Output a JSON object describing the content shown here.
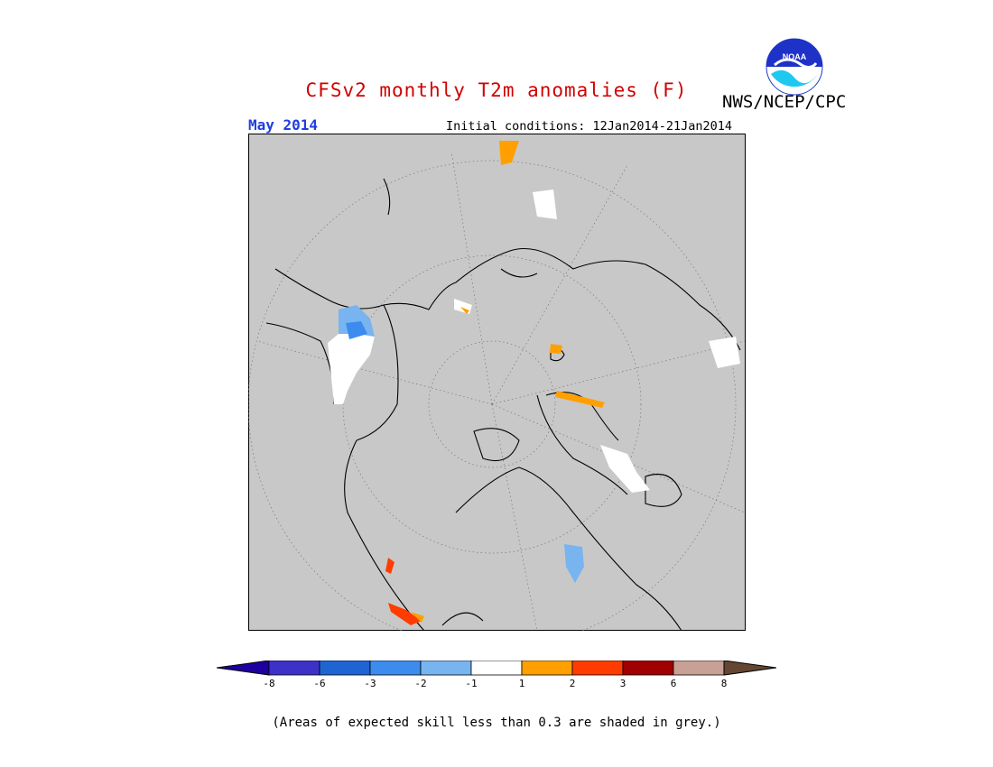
{
  "title": "CFSv2 monthly T2m anomalies (F)",
  "agency": "NWS/NCEP/CPC",
  "logo_text": "NOAA",
  "month": "May 2014",
  "initial_conditions": "Initial conditions: 12Jan2014-21Jan2014",
  "map": {
    "projection": "polar stereographic, North Pole",
    "background_color": "#c8c8c8",
    "regions": [
      {
        "area": "Hudson Bay / eastern Canada",
        "category": "-3",
        "color": "#3c8cf0"
      },
      {
        "area": "Hudson Bay / eastern Canada",
        "category": "-2",
        "color": "#78b4f0"
      },
      {
        "area": "Ural / western Siberia",
        "category": "-2",
        "color": "#78b4f0"
      },
      {
        "area": "Mexico / southwestern US",
        "category": "3",
        "color": "#ff3c00"
      },
      {
        "area": "Northeast Asia / Japan",
        "category": "1",
        "color": "#ffa000"
      },
      {
        "area": "Iran / Caspian",
        "category": "1",
        "color": "#ffa000"
      }
    ]
  },
  "legend": {
    "colors": [
      "#1e00a0",
      "#3c32c8",
      "#1e64d2",
      "#3c8cf0",
      "#78b4f0",
      "#ffffff",
      "#ffa000",
      "#ff3c00",
      "#a00000",
      "#c8a096",
      "#644632"
    ],
    "tick_labels": [
      "-8",
      "-6",
      "-3",
      "-2",
      "-1",
      "1",
      "2",
      "3",
      "6",
      "8"
    ]
  },
  "footnote": "(Areas of expected skill less than 0.3 are shaded in grey.)"
}
